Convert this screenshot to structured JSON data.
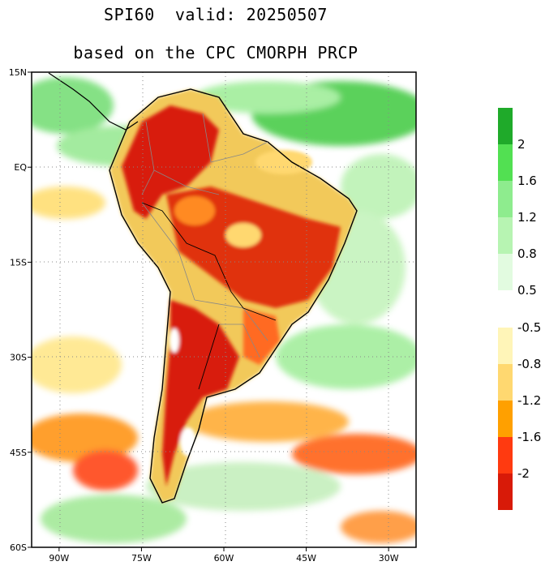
{
  "title": {
    "line1": "SPI60  valid: 20250507",
    "line2": "based on the CPC CMORPH PRCP"
  },
  "map": {
    "lon_min": -95,
    "lon_max": -25,
    "lat_min": -60,
    "lat_max": 15,
    "lat_labels": [
      "15N",
      "EQ",
      "15S",
      "30S",
      "45S",
      "60S"
    ],
    "lat_values": [
      15,
      0,
      -15,
      -30,
      -45,
      -60
    ],
    "lon_labels": [
      "90W",
      "75W",
      "60W",
      "45W",
      "30W"
    ],
    "lon_values": [
      -90,
      -75,
      -60,
      -45,
      -30
    ]
  },
  "colorbar": {
    "upper_labels": [
      "2",
      "1.6",
      "1.2",
      "0.8",
      "0.5"
    ],
    "lower_labels": [
      "-0.5",
      "-0.8",
      "-1.2",
      "-1.6",
      "-2"
    ],
    "upper_colors": [
      "#1faa2a",
      "#52e052",
      "#8eec8e",
      "#b7f4b2",
      "#e2fbe0"
    ],
    "lower_colors": [
      "#fff5b8",
      "#ffd870",
      "#ffa000",
      "#ff3a10",
      "#d81a08"
    ]
  }
}
